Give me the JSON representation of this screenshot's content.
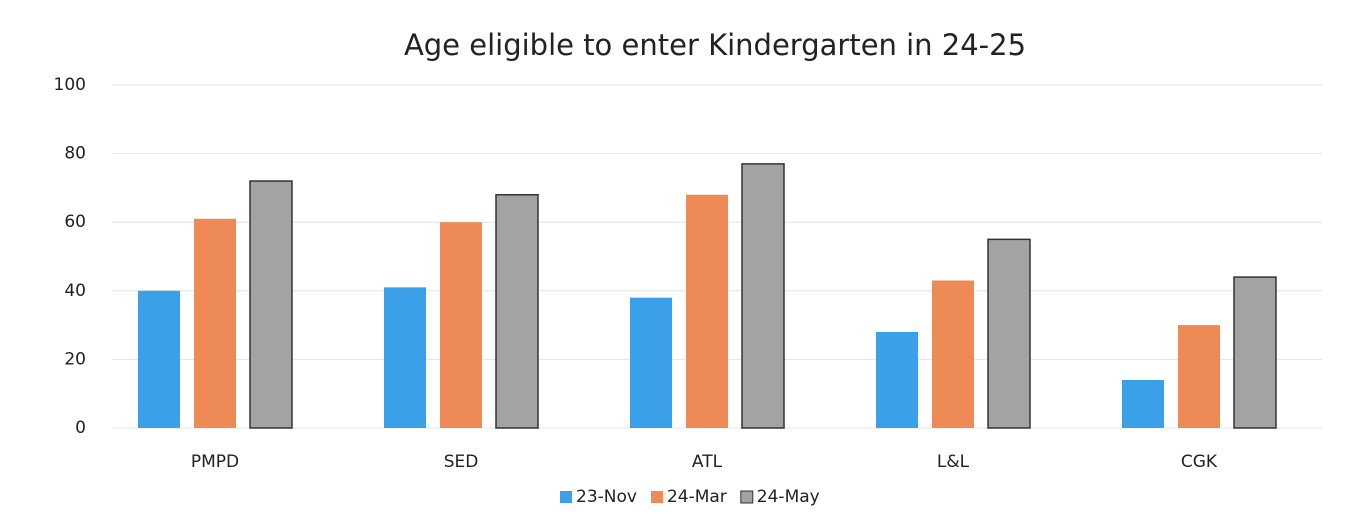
{
  "chart_data": {
    "type": "bar",
    "title": "Age eligible to enter Kindergarten in 24-25",
    "categories": [
      "PMPD",
      "SED",
      "ATL",
      "L&L",
      "CGK"
    ],
    "series": [
      {
        "name": "23-Nov",
        "color": "#3aa0e8",
        "values": [
          40,
          41,
          38,
          28,
          14
        ]
      },
      {
        "name": "24-Mar",
        "color": "#ee8a55",
        "values": [
          61,
          60,
          68,
          43,
          30
        ]
      },
      {
        "name": "24-May",
        "color": "#a3a3a3",
        "values": [
          72,
          68,
          77,
          55,
          44
        ]
      }
    ],
    "ylim": [
      0,
      100
    ],
    "yticks": [
      0,
      20,
      40,
      60,
      80,
      100
    ],
    "grid": true,
    "legend": "bottom"
  }
}
